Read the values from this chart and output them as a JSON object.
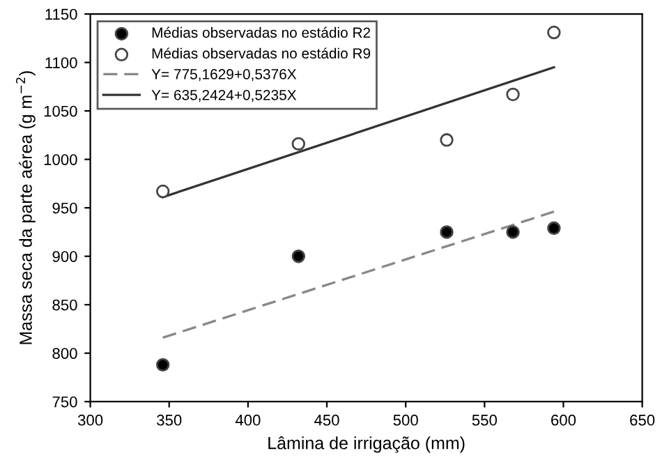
{
  "chart_data": {
    "type": "scatter",
    "xlabel": "Lâmina de irrigação (mm)",
    "ylabel": "Massa seca da parte aérea (g m$^{−2}$)",
    "xlim": [
      300,
      650
    ],
    "xticks": [
      300,
      350,
      400,
      450,
      500,
      550,
      600,
      650
    ],
    "ylim": [
      750,
      1150
    ],
    "yticks": [
      750,
      800,
      850,
      900,
      950,
      1000,
      1050,
      1100,
      1150
    ],
    "grid": false,
    "legend": "top left",
    "series": [
      {
        "name": "Médias observadas no estádio R2",
        "marker": "circle",
        "color": "#000000",
        "x": [
          346,
          432,
          526,
          568,
          594
        ],
        "values": [
          788,
          900,
          925,
          925,
          929
        ]
      },
      {
        "name": "Médias observadas no estádio R9",
        "marker": "circle",
        "color": "#ffffff",
        "x": [
          346,
          432,
          526,
          568,
          594
        ],
        "values": [
          967,
          1016,
          1020,
          1067,
          1131
        ]
      },
      {
        "name": "Y= 775,1629+0,5376X",
        "type": "line",
        "line_style": "dashed",
        "color": "#888888",
        "x": [
          346,
          594
        ],
        "values": [
          816,
          946
        ]
      },
      {
        "name": "Y= 635,2424+0,5235X",
        "type": "line",
        "line_style": "solid",
        "color": "#333333",
        "x": [
          346,
          594
        ],
        "values": [
          961,
          1095
        ]
      }
    ]
  }
}
